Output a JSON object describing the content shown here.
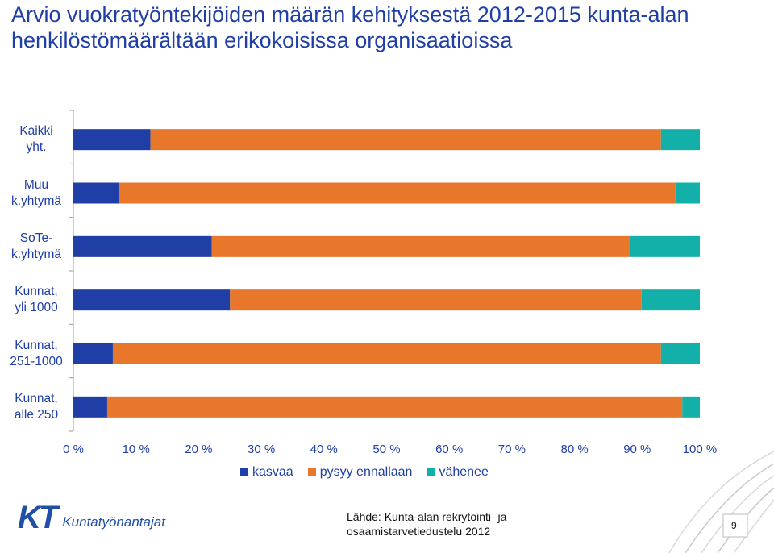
{
  "title": "Arvio vuokratyöntekijöiden määrän kehityksestä 2012-2015 kunta-alan henkilöstömäärältään erikokoisissa organisaatioissa",
  "chart_data": {
    "type": "bar",
    "orientation": "horizontal",
    "stacked": true,
    "percent": true,
    "categories": [
      "Kaikki yht.",
      "Muu k.yhtymä",
      "SoTe-k.yhtymä",
      "Kunnat, yli 1000",
      "Kunnat, 251-1000",
      "Kunnat, alle 250"
    ],
    "series": [
      {
        "name": "kasvaa",
        "color": "#1f3fa6",
        "values": [
          12.3,
          7.3,
          22.1,
          25.0,
          6.3,
          5.4
        ]
      },
      {
        "name": "pysyy ennallaan",
        "color": "#e8762b",
        "values": [
          81.5,
          88.8,
          66.7,
          65.7,
          87.5,
          91.8
        ]
      },
      {
        "name": "vähenee",
        "color": "#12b0a8",
        "values": [
          6.2,
          3.9,
          11.2,
          9.3,
          6.2,
          2.8
        ]
      }
    ],
    "x_ticks": [
      "0 %",
      "10 %",
      "20 %",
      "30 %",
      "40 %",
      "50 %",
      "60 %",
      "70 %",
      "80 %",
      "90 %",
      "100 %"
    ],
    "xlim": [
      0,
      100
    ],
    "legend_position": "bottom",
    "grid": false
  },
  "footer": {
    "logo_mark": "KT",
    "logo_text": "Kuntatyönantajat",
    "source_line1": "Lähde: Kunta-alan rekrytointi- ja",
    "source_line2": "osaamistarvetiedustelu 2012",
    "page_number": "9"
  }
}
